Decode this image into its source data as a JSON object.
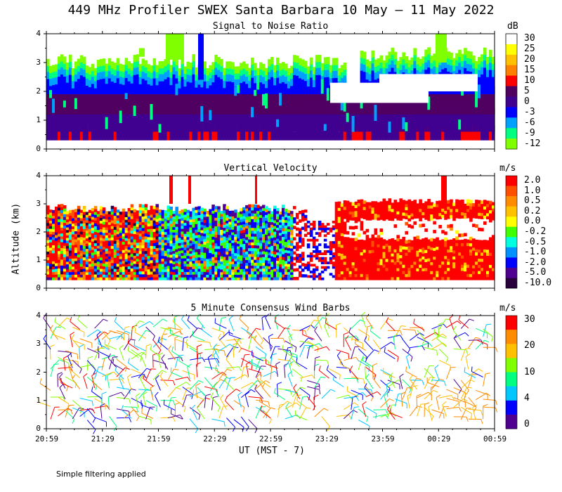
{
  "title": "449 MHz Profiler SWEX Santa Barbara 10 May — 11 May 2022",
  "y_axis_label": "Altitude (km)",
  "x_axis_label": "UT  (MST - 7)",
  "footnote": "Simple filtering applied",
  "x_ticks": [
    "20:59",
    "21:29",
    "21:59",
    "22:29",
    "22:59",
    "23:29",
    "23:59",
    "00:29",
    "00:59"
  ],
  "y_ticks": [
    "0",
    "1",
    "2",
    "3",
    "4"
  ],
  "chart_data": [
    {
      "type": "heatmap",
      "title": "Signal to Noise Ratio",
      "unit": "dB",
      "xlabel": "UT  (MST - 7)",
      "ylabel": "Altitude (km)",
      "ylim": [
        0,
        4
      ],
      "xlim": [
        "20:59",
        "00:59"
      ],
      "colorbar_labels": [
        "30",
        "25",
        "20",
        "15",
        "10",
        "5",
        "0",
        "-3",
        "-6",
        "-9",
        "-12"
      ],
      "colorbar_colors": [
        "#ffffff",
        "#ffff00",
        "#ffc000",
        "#ff8000",
        "#ff0000",
        "#500060",
        "#400090",
        "#0000ff",
        "#00a0ff",
        "#00ff80",
        "#80ff00"
      ],
      "bands": [
        {
          "label": "-12",
          "alt_km": [
            2.9,
            3.2
          ]
        },
        {
          "label": "-9",
          "alt_km": [
            2.6,
            2.9
          ]
        },
        {
          "label": "-3",
          "alt_km": [
            2.2,
            2.6
          ]
        },
        {
          "label": "0",
          "alt_km": [
            1.2,
            2.2
          ]
        },
        {
          "label": "5",
          "alt_km": [
            0.3,
            1.2
          ]
        }
      ]
    },
    {
      "type": "heatmap",
      "title": "Vertical Velocity",
      "unit": "m/s",
      "xlabel": "UT  (MST - 7)",
      "ylabel": "Altitude (km)",
      "ylim": [
        0,
        4
      ],
      "xlim": [
        "20:59",
        "00:59"
      ],
      "colorbar_labels": [
        "2.0",
        "1.0",
        "0.5",
        "0.2",
        "0.0",
        "-0.2",
        "-0.5",
        "-1.0",
        "-2.0",
        "-5.0",
        "-10.0"
      ],
      "colorbar_colors": [
        "#ff0000",
        "#ff5000",
        "#ff8c00",
        "#ffc000",
        "#ffff00",
        "#40ff00",
        "#00ffe0",
        "#0090ff",
        "#0000ff",
        "#500090",
        "#28003c"
      ],
      "regimes": [
        {
          "period": "20:59-21:59",
          "dominant": "mixed"
        },
        {
          "period": "21:59-22:59",
          "dominant": "-2.0"
        },
        {
          "period": "23:10-00:59",
          "dominant": "2.0"
        }
      ]
    },
    {
      "type": "scatter",
      "title": "5 Minute Consensus Wind Barbs",
      "unit": "m/s",
      "xlabel": "UT  (MST - 7)",
      "ylabel": "Altitude (km)",
      "ylim": [
        0,
        4
      ],
      "xlim": [
        "20:59",
        "00:59"
      ],
      "colorbar_labels": [
        "30",
        "20",
        "10",
        "4",
        "0"
      ],
      "colorbar_colors": [
        "#ff0000",
        "#ff8c00",
        "#ffc000",
        "#80ff00",
        "#00ff80",
        "#00c8ff",
        "#0000ff",
        "#500090"
      ],
      "speed_levels_ms": [
        0,
        4,
        10,
        20,
        30
      ]
    }
  ]
}
